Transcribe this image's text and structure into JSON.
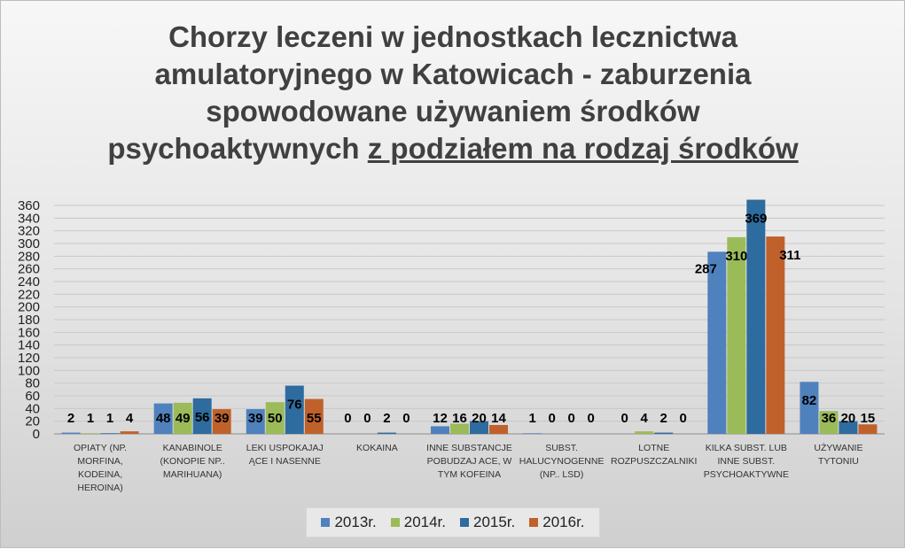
{
  "title": {
    "line1": "Chorzy leczeni w jednostkach lecznictwa",
    "line2": "amulatoryjnego w Katowicach - zaburzenia",
    "line3": "spowodowane używaniem środków",
    "line4_plain": "psychoaktywnych ",
    "line4_underlined": "z podziałem na rodzaj środków"
  },
  "chart_data": {
    "type": "bar",
    "title": "Chorzy leczeni w jednostkach lecznictwa amulatoryjnego w Katowicach - zaburzenia spowodowane używaniem środków psychoaktywnych z podziałem na rodzaj środków",
    "categories": [
      [
        "OPIATY (NP.",
        "MORFINA,",
        "KODEINA,",
        "HEROINA)"
      ],
      [
        "KANABINOLE",
        "(KONOPIE NP..",
        "MARIHUANA)"
      ],
      [
        "LEKI USPOKAJAJ",
        "ĄCE I NASENNE"
      ],
      [
        "KOKAINA"
      ],
      [
        "INNE SUBSTANCJE",
        "POBUDZAJ ACE, W",
        "TYM KOFEINA"
      ],
      [
        "SUBST.",
        "HALUCYNOGENNE",
        "(NP.. LSD)"
      ],
      [
        "LOTNE",
        "ROZPUSZCZALNIKI"
      ],
      [
        "KILKA SUBST. LUB",
        "INNE SUBST.",
        "PSYCHOAKTYWNE"
      ],
      [
        "UŻYWANIE",
        "TYTONIU"
      ]
    ],
    "series": [
      {
        "name": "2013r.",
        "color": "#4f81bd",
        "values": [
          2,
          48,
          39,
          0,
          12,
          1,
          0,
          287,
          82
        ]
      },
      {
        "name": "2014r.",
        "color": "#9bbb59",
        "values": [
          1,
          49,
          50,
          0,
          16,
          0,
          4,
          310,
          36
        ]
      },
      {
        "name": "2015r.",
        "color": "#2e6b9e",
        "values": [
          1,
          56,
          76,
          2,
          20,
          0,
          2,
          369,
          20
        ]
      },
      {
        "name": "2016r.",
        "color": "#c0612b",
        "values": [
          4,
          39,
          55,
          0,
          14,
          0,
          0,
          311,
          15
        ]
      }
    ],
    "ylim": [
      0,
      360
    ],
    "yticks": [
      0,
      20,
      40,
      60,
      80,
      100,
      120,
      140,
      160,
      180,
      200,
      220,
      240,
      260,
      280,
      300,
      320,
      340,
      360
    ],
    "grid": true,
    "legend": "bottom",
    "xlabel": "",
    "ylabel": ""
  }
}
